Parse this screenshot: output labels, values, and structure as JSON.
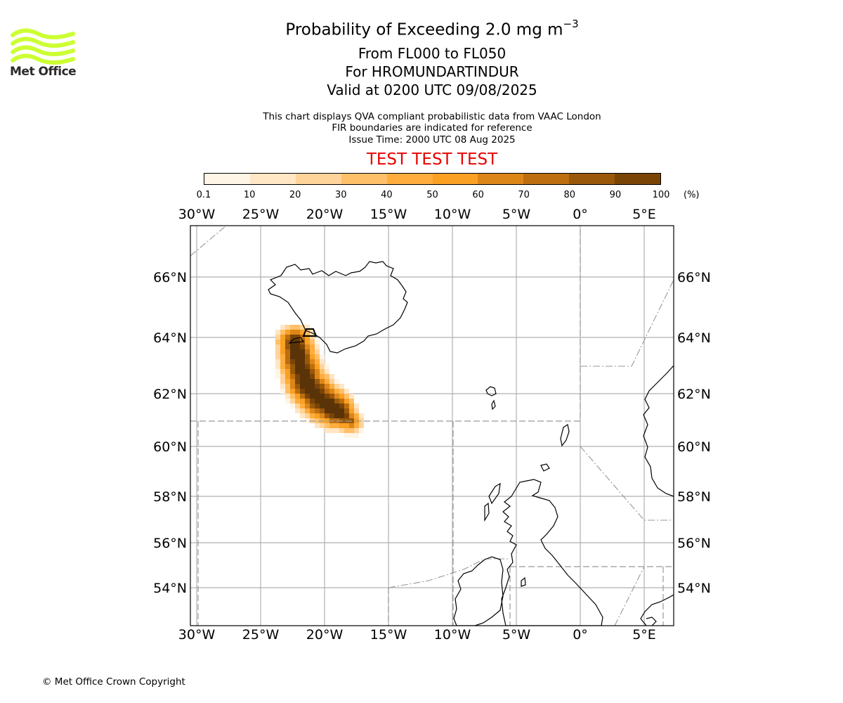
{
  "header": {
    "title_prefix": "Probability of Exceeding 2.0 mg m",
    "title_superscript": "−3",
    "level_range": "From FL000 to FL050",
    "volcano": "For HROMUNDARTINDUR",
    "valid_time": "Valid at 0200 UTC 09/08/2025",
    "description_line1": "This chart displays QVA compliant probabilistic data from VAAC London",
    "description_line2": "FIR boundaries are indicated for reference",
    "issue_time": "Issue Time: 2000 UTC 08 Aug 2025",
    "test_banner": "TEST TEST TEST",
    "test_color": "#e60000"
  },
  "logo": {
    "text": "Met Office",
    "icon": "met-office-waves-icon",
    "color": "#ccff33"
  },
  "colorbar": {
    "ticks": [
      "0.1",
      "10",
      "20",
      "30",
      "40",
      "50",
      "60",
      "70",
      "80",
      "90",
      "100"
    ],
    "unit": "(%)",
    "colors": [
      "#fff5e6",
      "#ffe6c4",
      "#ffd49b",
      "#ffc06a",
      "#ffad3d",
      "#faa023",
      "#dd8618",
      "#bd6f0f",
      "#9a580a",
      "#7a4407",
      "#5a3408"
    ]
  },
  "map": {
    "lon_labels": [
      "30°W",
      "25°W",
      "20°W",
      "15°W",
      "10°W",
      "5°W",
      "0°",
      "5°E"
    ],
    "lon_values": [
      -30,
      -25,
      -20,
      -15,
      -10,
      -5,
      0,
      5
    ],
    "lat_labels": [
      "66°N",
      "64°N",
      "62°N",
      "60°N",
      "58°N",
      "56°N",
      "54°N"
    ],
    "lat_values": [
      66,
      64,
      62,
      60,
      58,
      56,
      54
    ],
    "volcano_marker": {
      "lon": -21.2,
      "lat": 64.05
    }
  },
  "copyright": "© Met Office Crown Copyright"
}
